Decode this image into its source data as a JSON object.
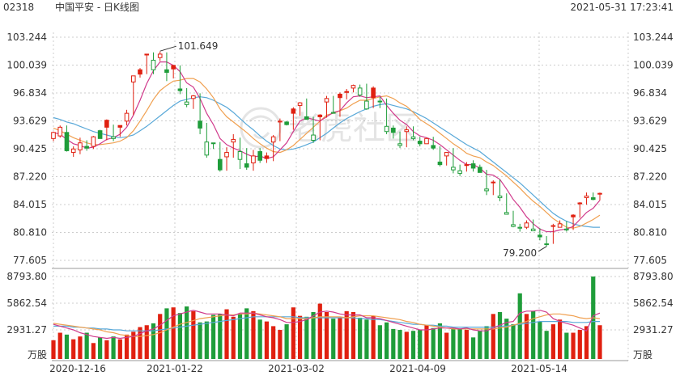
{
  "header": {
    "code": "02318",
    "title": "中国平安 - 日K线图",
    "timestamp": "2021-05-31 17:23:41"
  },
  "watermark": "老虎社区",
  "colors": {
    "up": "#e02010",
    "down": "#1f9d3a",
    "ma5": "#d03a8c",
    "ma10": "#f0a050",
    "ma20": "#58a8d8",
    "grid": "#cccccc"
  },
  "chart_data": [
    {
      "type": "candlestick",
      "price_ticks": [
        "103.244",
        "100.039",
        "96.834",
        "93.629",
        "90.425",
        "87.220",
        "84.015",
        "80.810",
        "77.605"
      ],
      "ylim": [
        77.605,
        103.244
      ],
      "x_labels": [
        "2020-12-16",
        "2021-01-22",
        "2021-03-02",
        "2021-04-09",
        "2021-05-14"
      ],
      "annotations": {
        "high": "101.649",
        "low": "79.200"
      },
      "moving_averages": [
        "MA5",
        "MA10",
        "MA20"
      ],
      "candles": [
        [
          91.5,
          92.3,
          91.6,
          92.4,
          91.3
        ],
        [
          92.3,
          92.9,
          91.9,
          93.1,
          91.7
        ],
        [
          92.9,
          90.2,
          92.3,
          93.1,
          90.1
        ],
        [
          90.2,
          90.4,
          90.0,
          90.7,
          89.5
        ],
        [
          90.4,
          91.1,
          90.3,
          91.7,
          89.8
        ],
        [
          91.1,
          90.5,
          90.7,
          91.4,
          90.2
        ],
        [
          90.5,
          91.8,
          90.7,
          91.9,
          90.4
        ],
        [
          91.8,
          91.6,
          92.5,
          92.6,
          91.6
        ],
        [
          91.6,
          92.9,
          93.7,
          93.8,
          91.4
        ],
        [
          92.9,
          91.8,
          91.6,
          93.2,
          91.3
        ],
        [
          91.8,
          92.9,
          93.1,
          93.1,
          91.8
        ],
        [
          92.9,
          94.5,
          93.6,
          94.9,
          93.1
        ],
        [
          94.5,
          98.8,
          98.1,
          98.8,
          94.3
        ],
        [
          98.8,
          99.0,
          99.5,
          99.7,
          98.6
        ],
        [
          99.0,
          101.2,
          101.3,
          101.3,
          99.0
        ],
        [
          101.2,
          100.6,
          99.5,
          101.5,
          99.0
        ],
        [
          100.6,
          101.3,
          100.9,
          101.6,
          100.5
        ],
        [
          101.3,
          99.2,
          99.5,
          101.5,
          98.2
        ],
        [
          99.2,
          99.6,
          100.0,
          100.0,
          98.5
        ],
        [
          99.6,
          97.1,
          97.3,
          100.0,
          96.7
        ],
        [
          97.1,
          95.8,
          95.5,
          97.4,
          95.2
        ],
        [
          95.8,
          96.5,
          96.2,
          96.6,
          95.0
        ],
        [
          96.5,
          92.8,
          93.6,
          96.8,
          92.1
        ],
        [
          92.8,
          91.2,
          89.7,
          93.4,
          89.4
        ],
        [
          91.2,
          91.1,
          91.1,
          91.1,
          90.4
        ],
        [
          91.1,
          88.0,
          89.2,
          91.2,
          87.8
        ],
        [
          88.0,
          90.0,
          89.5,
          90.6,
          87.9
        ],
        [
          90.0,
          91.5,
          91.2,
          92.1,
          89.4
        ],
        [
          91.5,
          90.1,
          89.2,
          91.7,
          88.1
        ],
        [
          90.1,
          88.3,
          88.7,
          90.5,
          88.0
        ],
        [
          88.3,
          89.6,
          88.8,
          90.3,
          87.9
        ],
        [
          89.6,
          89.1,
          90.1,
          90.5,
          88.8
        ],
        [
          89.1,
          89.3,
          89.6,
          90.0,
          88.8
        ],
        [
          89.3,
          91.8,
          91.2,
          92.0,
          89.0
        ],
        [
          91.8,
          93.6,
          93.5,
          93.9,
          91.3
        ],
        [
          93.6,
          93.2,
          93.5,
          93.6,
          93.1
        ],
        [
          93.2,
          94.5,
          95.0,
          95.2,
          92.6
        ],
        [
          94.5,
          95.7,
          95.4,
          95.8,
          94.2
        ],
        [
          95.7,
          93.8,
          94.1,
          96.2,
          93.8
        ],
        [
          93.8,
          92.0,
          91.4,
          94.1,
          91.1
        ],
        [
          92.0,
          94.1,
          94.3,
          94.4,
          91.4
        ],
        [
          94.1,
          96.2,
          95.8,
          96.5,
          94.0
        ],
        [
          96.2,
          94.6,
          94.5,
          96.5,
          94.5
        ],
        [
          94.6,
          96.3,
          96.7,
          96.9,
          94.1
        ],
        [
          96.3,
          96.9,
          97.0,
          97.3,
          96.1
        ],
        [
          96.9,
          97.7,
          97.4,
          97.8,
          96.9
        ],
        [
          97.7,
          97.4,
          96.6,
          97.8,
          96.4
        ],
        [
          97.4,
          95.9,
          95.0,
          97.9,
          94.9
        ],
        [
          95.9,
          96.3,
          97.4,
          97.6,
          95.1
        ],
        [
          96.3,
          95.9,
          95.9,
          96.4,
          95.1
        ],
        [
          95.9,
          93.0,
          92.4,
          96.2,
          92.1
        ],
        [
          93.0,
          92.3,
          92.8,
          93.1,
          91.6
        ],
        [
          92.3,
          91.0,
          90.8,
          92.4,
          90.5
        ],
        [
          91.0,
          92.6,
          92.4,
          93.0,
          90.6
        ],
        [
          92.6,
          91.8,
          91.6,
          93.0,
          91.4
        ],
        [
          91.8,
          91.0,
          91.3,
          91.8,
          90.7
        ],
        [
          91.0,
          91.6,
          91.0,
          91.7,
          91.0
        ],
        [
          91.6,
          90.5,
          90.8,
          91.8,
          90.3
        ],
        [
          90.5,
          88.6,
          88.9,
          90.7,
          88.4
        ],
        [
          88.6,
          90.0,
          89.6,
          90.0,
          88.5
        ],
        [
          90.0,
          88.3,
          88.0,
          90.5,
          87.6
        ],
        [
          88.3,
          87.9,
          87.6,
          88.6,
          87.3
        ],
        [
          87.9,
          88.5,
          88.6,
          88.9,
          87.8
        ],
        [
          88.5,
          88.2,
          88.7,
          89.1,
          87.8
        ],
        [
          88.2,
          87.7,
          88.3,
          88.6,
          87.7
        ],
        [
          87.7,
          85.8,
          85.6,
          88.0,
          85.1
        ],
        [
          85.8,
          86.6,
          86.6,
          86.8,
          85.1
        ],
        [
          86.6,
          85.0,
          84.8,
          86.9,
          84.4
        ],
        [
          85.0,
          83.1,
          82.9,
          85.3,
          83.0
        ],
        [
          83.1,
          81.7,
          81.5,
          83.3,
          81.4
        ],
        [
          81.7,
          81.4,
          81.3,
          81.8,
          80.9
        ],
        [
          81.4,
          81.9,
          81.4,
          82.2,
          81.2
        ],
        [
          81.9,
          81.2,
          81.0,
          82.3,
          81.0
        ],
        [
          81.2,
          80.3,
          80.5,
          81.3,
          79.9
        ],
        [
          80.3,
          79.5,
          79.5,
          80.4,
          79.2
        ],
        [
          79.5,
          81.6,
          81.5,
          81.8,
          79.5
        ],
        [
          81.6,
          81.8,
          81.4,
          82.2,
          81.5
        ],
        [
          81.8,
          81.2,
          81.1,
          82.1,
          80.9
        ],
        [
          81.2,
          82.6,
          82.8,
          82.9,
          81.1
        ],
        [
          82.6,
          84.1,
          84.2,
          84.3,
          82.5
        ],
        [
          84.1,
          85.0,
          84.8,
          85.4,
          84.0
        ],
        [
          85.0,
          84.6,
          84.8,
          85.4,
          84.5
        ],
        [
          84.6,
          85.3,
          85.3,
          85.4,
          84.5
        ]
      ],
      "ma5": [
        92.3,
        92.1,
        91.5,
        91.0,
        90.8,
        90.5,
        90.6,
        91.0,
        91.5,
        91.7,
        92.1,
        92.9,
        94.3,
        96.0,
        97.9,
        99.4,
        100.4,
        100.4,
        100.0,
        99.3,
        98.0,
        97.5,
        96.2,
        94.5,
        93.2,
        91.6,
        90.9,
        90.5,
        90.2,
        89.8,
        89.5,
        89.6,
        89.3,
        89.5,
        90.3,
        91.1,
        92.4,
        93.6,
        94.0,
        93.8,
        93.6,
        94.1,
        94.6,
        94.8,
        95.7,
        96.4,
        96.5,
        96.3,
        96.4,
        96.5,
        95.4,
        94.5,
        93.7,
        93.2,
        92.4,
        91.9,
        91.7,
        91.4,
        90.9,
        90.3,
        89.7,
        89.1,
        88.6,
        88.6,
        88.2,
        87.5,
        87.4,
        86.9,
        85.8,
        84.6,
        83.7,
        82.6,
        81.8,
        81.2,
        80.9,
        80.9,
        81.1,
        81.2,
        81.5,
        82.3,
        83.1,
        83.6,
        84.5
      ],
      "ma10": [
        92.8,
        92.5,
        92.1,
        91.7,
        91.4,
        91.1,
        90.9,
        90.9,
        91.0,
        91.1,
        91.3,
        91.7,
        92.5,
        93.6,
        94.8,
        96.1,
        97.1,
        97.7,
        98.2,
        98.3,
        98.5,
        98.5,
        98.1,
        97.3,
        96.3,
        95.0,
        94.1,
        93.5,
        92.9,
        92.3,
        91.6,
        91.0,
        90.5,
        90.1,
        90.0,
        90.3,
        90.8,
        91.5,
        92.2,
        92.9,
        93.6,
        94.3,
        94.5,
        94.8,
        95.1,
        95.6,
        96.0,
        96.0,
        96.2,
        96.4,
        96.5,
        96.2,
        95.7,
        95.3,
        94.6,
        93.8,
        93.3,
        92.8,
        92.2,
        91.6,
        91.0,
        90.5,
        89.9,
        89.6,
        89.4,
        88.9,
        88.5,
        87.9,
        87.3,
        86.6,
        85.9,
        85.1,
        84.4,
        83.8,
        83.1,
        82.4,
        81.9,
        81.4,
        81.3,
        81.5,
        81.9,
        82.3,
        82.8
      ],
      "ma20": [
        94.0,
        93.8,
        93.5,
        93.3,
        93.0,
        92.7,
        92.4,
        92.2,
        92.0,
        91.8,
        91.7,
        91.8,
        92.0,
        92.5,
        93.0,
        93.6,
        94.2,
        94.8,
        95.4,
        95.9,
        96.1,
        96.3,
        96.4,
        96.3,
        96.0,
        95.6,
        95.2,
        94.6,
        93.9,
        93.2,
        92.6,
        91.9,
        91.3,
        90.8,
        90.4,
        90.3,
        90.4,
        90.6,
        90.9,
        91.2,
        91.7,
        92.2,
        92.8,
        93.4,
        93.9,
        94.3,
        94.7,
        95.0,
        95.3,
        95.5,
        95.6,
        95.4,
        95.2,
        95.0,
        94.7,
        94.3,
        93.9,
        93.4,
        92.9,
        92.4,
        91.9,
        91.4,
        90.9,
        90.5,
        90.1,
        89.5,
        88.9,
        88.3,
        87.7,
        87.1,
        86.5,
        85.8,
        85.1,
        84.4,
        83.7,
        83.0,
        82.5,
        82.1,
        81.8,
        81.6,
        81.5,
        81.4,
        81.4
      ]
    },
    {
      "type": "bar",
      "unit": "万股",
      "volume_ticks": [
        "8793.80",
        "5862.54",
        "2931.27"
      ],
      "ylim": [
        0,
        8793.8
      ],
      "volumes": [
        2000,
        2800,
        2600,
        2100,
        2400,
        2800,
        1700,
        2300,
        2000,
        2400,
        2100,
        2600,
        2900,
        3400,
        3600,
        3800,
        4800,
        5400,
        5500,
        4900,
        5600,
        5100,
        3900,
        4000,
        4700,
        4800,
        5300,
        4500,
        4800,
        5400,
        5100,
        4200,
        4000,
        3500,
        3100,
        3700,
        5500,
        4600,
        4500,
        5000,
        5900,
        5000,
        4300,
        4400,
        5100,
        5000,
        4400,
        4200,
        4600,
        3600,
        3900,
        3200,
        3100,
        2900,
        3000,
        3100,
        3600,
        3300,
        3800,
        2800,
        3300,
        3200,
        3100,
        2300,
        3000,
        3500,
        4800,
        5000,
        4300,
        3700,
        7000,
        4800,
        5100,
        4000,
        3000,
        3700,
        4200,
        2800,
        2800,
        3100,
        3500,
        9200,
        3600
      ],
      "vma5": [
        3700,
        3500,
        3300,
        3100,
        2800,
        2600,
        2400,
        2300,
        2200,
        2300,
        2200,
        2300,
        2400,
        2700,
        3000,
        3200,
        3600,
        4100,
        4600,
        4800,
        5000,
        5200,
        5000,
        4800,
        4800,
        4800,
        4700,
        4600,
        4900,
        4900,
        4900,
        4700,
        4500,
        4400,
        4200,
        3900,
        3900,
        4000,
        4200,
        4600,
        5000,
        5100,
        5000,
        4800,
        4700,
        4700,
        4700,
        4400,
        4400,
        4300,
        4100,
        3900,
        3700,
        3500,
        3300,
        3100,
        3100,
        3200,
        3300,
        3300,
        3300,
        3200,
        3300,
        3100,
        3000,
        3000,
        3300,
        3600,
        3900,
        4000,
        4900,
        5100,
        5100,
        5200,
        5000,
        4300,
        4000,
        3800,
        3600,
        3300,
        3000,
        4600,
        4900
      ],
      "vma10": [
        3800,
        3700,
        3600,
        3500,
        3400,
        3300,
        3200,
        3100,
        2900,
        2800,
        2600,
        2500,
        2400,
        2400,
        2500,
        2600,
        2800,
        3100,
        3400,
        3700,
        3900,
        4100,
        4300,
        4400,
        4500,
        4600,
        4700,
        4700,
        4800,
        4800,
        4900,
        4800,
        4700,
        4600,
        4500,
        4300,
        4300,
        4300,
        4300,
        4400,
        4500,
        4500,
        4500,
        4500,
        4400,
        4500,
        4600,
        4600,
        4600,
        4500,
        4400,
        4300,
        4200,
        4000,
        3900,
        3700,
        3600,
        3500,
        3400,
        3300,
        3200,
        3200,
        3200,
        3200,
        3200,
        3200,
        3200,
        3300,
        3400,
        3600,
        3800,
        4000,
        4300,
        4500,
        4700,
        4800,
        4800,
        4700,
        4600,
        4400,
        4300,
        4400,
        4300
      ],
      "vma20": [
        3500,
        3500,
        3500,
        3400,
        3400,
        3300,
        3300,
        3200,
        3200,
        3100,
        3100,
        3000,
        3000,
        3000,
        3000,
        3000,
        3100,
        3200,
        3300,
        3400,
        3500,
        3600,
        3700,
        3800,
        3900,
        4000,
        4100,
        4200,
        4300,
        4400,
        4500,
        4500,
        4500,
        4500,
        4500,
        4500,
        4500,
        4400,
        4400,
        4400,
        4400,
        4400,
        4400,
        4400,
        4400,
        4400,
        4300,
        4300,
        4200,
        4200,
        4100,
        4000,
        3900,
        3800,
        3700,
        3700,
        3600,
        3600,
        3500,
        3500,
        3400,
        3400,
        3400,
        3400,
        3400,
        3400,
        3400,
        3500,
        3500,
        3600,
        3700,
        3800,
        3900,
        4000,
        4000,
        4000,
        4000,
        4000,
        3900,
        3900,
        3900,
        4000,
        4000
      ]
    }
  ]
}
